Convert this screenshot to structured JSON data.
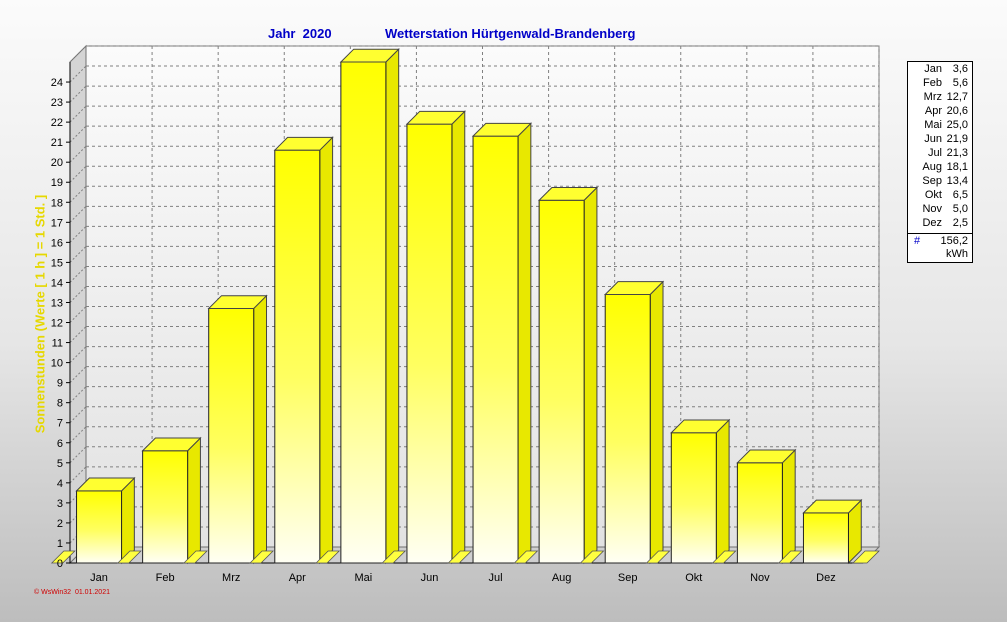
{
  "chart_data": {
    "type": "bar",
    "title_year": "Jahr  2020",
    "title_station": "Wetterstation Hürtgenwald-Brandenberg",
    "ylabel": "Sonnenstunden (Werte [ 1 h ]  =  1 Std. ]",
    "categories": [
      "Jan",
      "Feb",
      "Mrz",
      "Apr",
      "Mai",
      "Jun",
      "Jul",
      "Aug",
      "Sep",
      "Okt",
      "Nov",
      "Dez"
    ],
    "values": [
      3.6,
      5.6,
      12.7,
      20.6,
      25.0,
      21.9,
      21.3,
      18.1,
      13.4,
      6.5,
      5.0,
      2.5
    ],
    "ylim": [
      0,
      25
    ],
    "yticks": [
      0,
      1,
      2,
      3,
      4,
      5,
      6,
      7,
      8,
      9,
      10,
      11,
      12,
      13,
      14,
      15,
      16,
      17,
      18,
      19,
      20,
      21,
      22,
      23,
      24
    ],
    "grid": true,
    "legend_placement": "right",
    "colors": {
      "bar": "#ffff00",
      "bar_light": "#ffffe8",
      "title": "#0000c8",
      "ylabel": "#e6d800"
    }
  },
  "legend": {
    "rows": [
      {
        "month": "Jan",
        "value": "3,6"
      },
      {
        "month": "Feb",
        "value": "5,6"
      },
      {
        "month": "Mrz",
        "value": "12,7"
      },
      {
        "month": "Apr",
        "value": "20,6"
      },
      {
        "month": "Mai",
        "value": "25,0"
      },
      {
        "month": "Jun",
        "value": "21,9"
      },
      {
        "month": "Jul",
        "value": "21,3"
      },
      {
        "month": "Aug",
        "value": "18,1"
      },
      {
        "month": "Sep",
        "value": "13,4"
      },
      {
        "month": "Okt",
        "value": "6,5"
      },
      {
        "month": "Nov",
        "value": "5,0"
      },
      {
        "month": "Dez",
        "value": "2,5"
      }
    ],
    "total_symbol": "#",
    "total_value": "156,2",
    "unit": "kWh"
  },
  "footer": "© WsWin32  01.01.2021"
}
